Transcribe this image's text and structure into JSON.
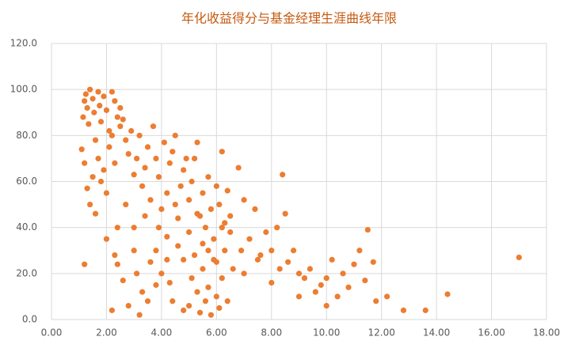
{
  "chart_data": {
    "type": "scatter",
    "title": "年化收益得分与基金经理生涯曲线年限",
    "color": "#ed7d31",
    "grid": true,
    "x": [
      1.1,
      1.15,
      1.2,
      1.25,
      1.3,
      1.35,
      1.4,
      1.5,
      1.55,
      1.6,
      1.7,
      1.75,
      1.8,
      1.9,
      2.0,
      2.1,
      2.2,
      2.3,
      2.4,
      2.5,
      1.2,
      1.3,
      1.4,
      1.5,
      1.6,
      1.7,
      1.8,
      1.9,
      2.0,
      2.1,
      2.2,
      2.3,
      2.4,
      2.5,
      2.6,
      2.7,
      2.8,
      2.9,
      3.0,
      3.1,
      3.2,
      3.3,
      3.4,
      3.5,
      3.6,
      3.7,
      3.8,
      3.9,
      4.0,
      4.1,
      4.2,
      4.3,
      4.4,
      4.5,
      4.6,
      4.7,
      4.8,
      4.9,
      5.0,
      5.1,
      5.2,
      5.3,
      5.4,
      5.5,
      5.6,
      5.7,
      5.8,
      5.9,
      6.0,
      6.1,
      6.2,
      6.3,
      6.4,
      6.5,
      6.8,
      7.0,
      7.2,
      7.4,
      7.6,
      7.8,
      8.0,
      8.2,
      8.4,
      8.5,
      8.6,
      8.8,
      9.0,
      9.2,
      9.4,
      9.6,
      9.8,
      10.0,
      10.2,
      10.4,
      10.6,
      10.8,
      11.0,
      11.2,
      11.4,
      11.5,
      11.7,
      11.8,
      12.2,
      12.8,
      13.6,
      14.4,
      17.0,
      1.2,
      2.2,
      2.4,
      2.6,
      2.8,
      3.0,
      3.2,
      3.3,
      3.5,
      3.6,
      3.8,
      4.0,
      4.2,
      4.4,
      4.6,
      4.8,
      5.0,
      5.1,
      5.2,
      5.3,
      5.4,
      5.5,
      5.6,
      5.7,
      5.8,
      5.9,
      6.0,
      6.1,
      6.2,
      6.3,
      6.4,
      6.6,
      3.0,
      3.4,
      3.8,
      4.2,
      4.5,
      5.0,
      5.3,
      5.7,
      6.0,
      6.5,
      7.0,
      7.5,
      8.0,
      8.3,
      9.0,
      10.0,
      2.0,
      2.3,
      2.7,
      3.1,
      3.9,
      4.3,
      4.8,
      5.5,
      6.2,
      6.9
    ],
    "values": [
      74,
      88,
      95,
      98,
      92,
      85,
      100,
      96,
      90,
      78,
      99,
      93,
      86,
      97,
      91,
      82,
      99,
      95,
      88,
      92,
      68,
      57,
      50,
      62,
      46,
      70,
      60,
      65,
      55,
      75,
      80,
      68,
      40,
      84,
      87,
      78,
      72,
      82,
      63,
      70,
      80,
      58,
      66,
      75,
      52,
      84,
      70,
      62,
      48,
      77,
      55,
      68,
      73,
      80,
      44,
      58,
      65,
      70,
      52,
      60,
      70,
      77,
      45,
      55,
      40,
      62,
      48,
      35,
      58,
      50,
      73,
      42,
      56,
      38,
      66,
      52,
      35,
      48,
      28,
      38,
      30,
      40,
      63,
      46,
      25,
      30,
      20,
      18,
      22,
      12,
      15,
      18,
      26,
      10,
      20,
      14,
      24,
      30,
      17,
      39,
      25,
      8,
      10,
      4,
      4,
      11,
      27,
      24,
      4,
      24,
      17,
      6,
      30,
      2,
      12,
      8,
      25,
      15,
      20,
      36,
      8,
      32,
      26,
      6,
      18,
      28,
      12,
      3,
      22,
      8,
      14,
      2,
      26,
      10,
      5,
      18,
      30,
      8,
      22,
      40,
      45,
      30,
      26,
      50,
      38,
      46,
      30,
      25,
      45,
      20,
      26,
      16,
      22,
      10,
      6,
      35,
      28,
      50,
      20,
      40,
      16,
      4,
      33,
      40,
      30
    ],
    "xlim": [
      0,
      18
    ],
    "ylim": [
      0,
      120
    ],
    "xticks": [
      {
        "value": 0,
        "label": "0.00"
      },
      {
        "value": 2,
        "label": "2.00"
      },
      {
        "value": 4,
        "label": "4.00"
      },
      {
        "value": 6,
        "label": "6.00"
      },
      {
        "value": 8,
        "label": "8.00"
      },
      {
        "value": 10,
        "label": "10.00"
      },
      {
        "value": 12,
        "label": "12.00"
      },
      {
        "value": 14,
        "label": "14.00"
      },
      {
        "value": 16,
        "label": "16.00"
      },
      {
        "value": 18,
        "label": "18.00"
      }
    ],
    "yticks": [
      {
        "value": 0,
        "label": "0.0"
      },
      {
        "value": 20,
        "label": "20.0"
      },
      {
        "value": 40,
        "label": "40.0"
      },
      {
        "value": 60,
        "label": "60.0"
      },
      {
        "value": 80,
        "label": "80.0"
      },
      {
        "value": 100,
        "label": "100.0"
      },
      {
        "value": 120,
        "label": "120.0"
      }
    ]
  }
}
